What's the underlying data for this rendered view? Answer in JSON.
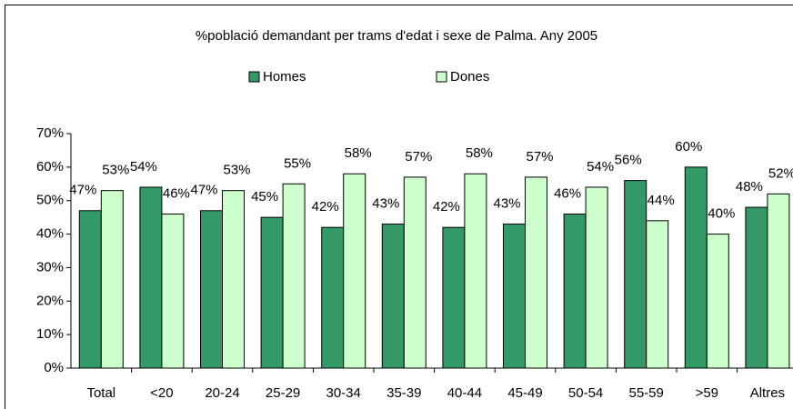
{
  "chart_data": {
    "type": "bar",
    "title": "%població demandant per trams d'edat i sexe de Palma. Any 2005",
    "categories": [
      "Total",
      "<20",
      "20-24",
      "25-29",
      "30-34",
      "35-39",
      "40-44",
      "45-49",
      "50-54",
      "55-59",
      ">59",
      "Altres"
    ],
    "series": [
      {
        "name": "Homes",
        "color": "#339966",
        "values": [
          47,
          54,
          47,
          45,
          42,
          43,
          42,
          43,
          46,
          56,
          60,
          48
        ],
        "value_labels": [
          "47%",
          "54%",
          "47%",
          "45%",
          "42%",
          "43%",
          "42%",
          "43%",
          "46%",
          "56%",
          "60%",
          "48%"
        ]
      },
      {
        "name": "Dones",
        "color": "#ccffcc",
        "values": [
          53,
          46,
          53,
          55,
          58,
          57,
          58,
          57,
          54,
          44,
          40,
          52
        ],
        "value_labels": [
          "53%",
          "46%",
          "53%",
          "55%",
          "58%",
          "57%",
          "58%",
          "57%",
          "54%",
          "44%",
          "40%",
          "52%"
        ]
      }
    ],
    "ylim": [
      0,
      70
    ],
    "yticks": [
      {
        "value": 0,
        "label": "0%"
      },
      {
        "value": 10,
        "label": "10%"
      },
      {
        "value": 20,
        "label": "20%"
      },
      {
        "value": 30,
        "label": "30%"
      },
      {
        "value": 40,
        "label": "40%"
      },
      {
        "value": 50,
        "label": "50%"
      },
      {
        "value": 60,
        "label": "60%"
      },
      {
        "value": 70,
        "label": "70%"
      }
    ],
    "legend": "top"
  }
}
